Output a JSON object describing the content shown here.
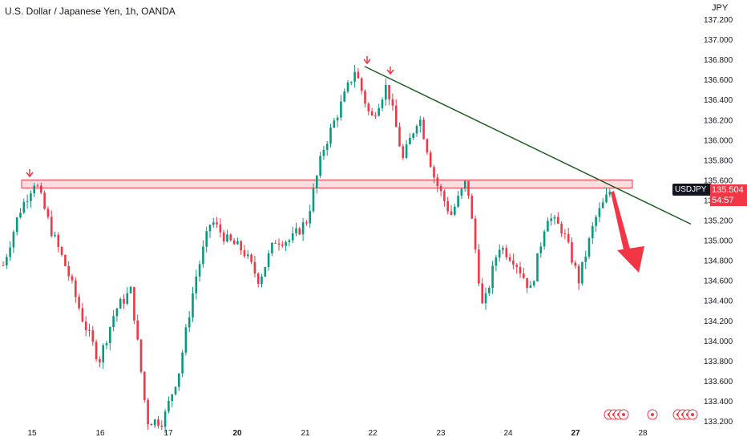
{
  "chart": {
    "title": "U.S. Dollar / Japanese Yen, 1h, OANDA",
    "currency": "JPY",
    "symbol": "USDJPY",
    "last_price": "135.504",
    "countdown": "54:57",
    "colors": {
      "up": "#089981",
      "down": "#f23645",
      "trendline": "#1b5e20",
      "zone_fill": "#f8c9cc",
      "zone_border": "#f23645",
      "arrow": "#f23645",
      "text": "#131722"
    }
  },
  "chart_data": {
    "type": "candlestick",
    "title": "U.S. Dollar / Japanese Yen, 1h, OANDA",
    "ylim": [
      133.2,
      137.2
    ],
    "y_ticks": [
      "137.200",
      "137.000",
      "136.800",
      "136.600",
      "136.400",
      "136.200",
      "136.000",
      "135.800",
      "135.600",
      "135.400",
      "135.200",
      "135.000",
      "134.800",
      "134.600",
      "134.400",
      "134.200",
      "134.000",
      "133.800",
      "133.600",
      "133.400",
      "133.200"
    ],
    "x_ticks": [
      "15",
      "16",
      "17",
      "20",
      "21",
      "22",
      "23",
      "24",
      "27",
      "28"
    ],
    "price_path": [
      {
        "day": "15",
        "price": 134.75
      },
      {
        "day": "15",
        "price": 135.28
      },
      {
        "day": "15",
        "price": 135.6
      },
      {
        "day": "15",
        "price": 135.1
      },
      {
        "day": "15",
        "price": 134.7
      },
      {
        "day": "16",
        "price": 134.2
      },
      {
        "day": "16",
        "price": 133.8
      },
      {
        "day": "16",
        "price": 134.3
      },
      {
        "day": "16",
        "price": 134.5
      },
      {
        "day": "16",
        "price": 133.2
      },
      {
        "day": "17",
        "price": 133.2
      },
      {
        "day": "17",
        "price": 133.7
      },
      {
        "day": "17",
        "price": 134.6
      },
      {
        "day": "17",
        "price": 135.2
      },
      {
        "day": "20",
        "price": 135.0
      },
      {
        "day": "20",
        "price": 134.9
      },
      {
        "day": "20",
        "price": 134.6
      },
      {
        "day": "20",
        "price": 135.0
      },
      {
        "day": "21",
        "price": 135.0
      },
      {
        "day": "21",
        "price": 135.2
      },
      {
        "day": "21",
        "price": 135.9
      },
      {
        "day": "21",
        "price": 136.3
      },
      {
        "day": "22",
        "price": 136.7
      },
      {
        "day": "22",
        "price": 136.2
      },
      {
        "day": "22",
        "price": 136.55
      },
      {
        "day": "22",
        "price": 135.8
      },
      {
        "day": "22",
        "price": 136.25
      },
      {
        "day": "23",
        "price": 135.6
      },
      {
        "day": "23",
        "price": 135.25
      },
      {
        "day": "23",
        "price": 135.6
      },
      {
        "day": "23",
        "price": 134.3
      },
      {
        "day": "24",
        "price": 134.95
      },
      {
        "day": "24",
        "price": 134.8
      },
      {
        "day": "24",
        "price": 134.5
      },
      {
        "day": "24",
        "price": 135.25
      },
      {
        "day": "27",
        "price": 135.1
      },
      {
        "day": "27",
        "price": 134.6
      },
      {
        "day": "27",
        "price": 135.2
      },
      {
        "day": "27",
        "price": 135.504
      }
    ],
    "resistance_zone": [
      135.52,
      135.6
    ],
    "trendline": [
      {
        "day": "22",
        "price": 136.73
      },
      {
        "day": "28",
        "price": 135.16
      }
    ],
    "projection_arrow": {
      "from": 135.5,
      "to": 134.7
    },
    "markers": [
      "15",
      "22",
      "22"
    ]
  }
}
